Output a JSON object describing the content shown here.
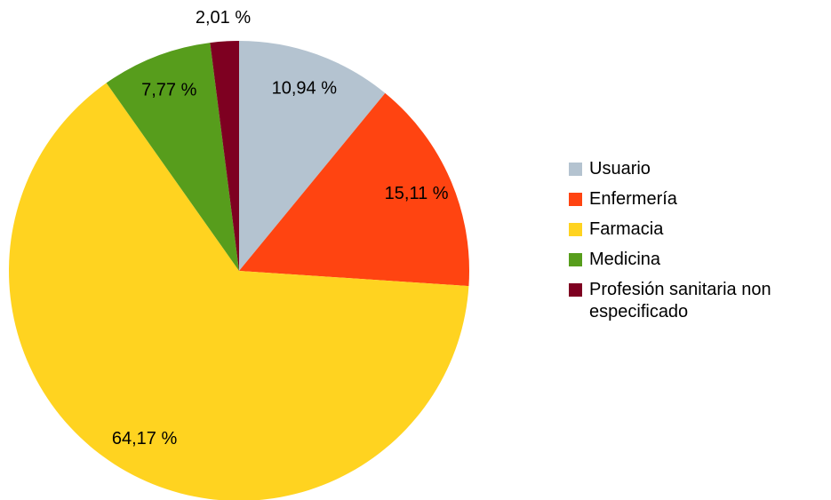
{
  "chart_data": {
    "type": "pie",
    "categories": [
      "Usuario",
      "Enfermería",
      "Farmacia",
      "Medicina",
      "Profesión sanitaria non especificado"
    ],
    "values": [
      10.94,
      15.11,
      64.17,
      7.77,
      2.01
    ],
    "value_labels": [
      "10,94 %",
      "15,11 %",
      "64,17 %",
      "7,77 %",
      "2,01 %"
    ],
    "colors": [
      "#b4c3d0",
      "#ff4411",
      "#ffd320",
      "#579d1c",
      "#7e0021"
    ],
    "legend": "right"
  }
}
